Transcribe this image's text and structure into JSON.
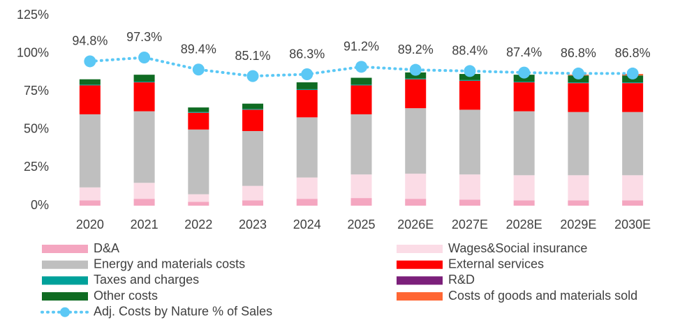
{
  "chart_data": {
    "type": "bar",
    "categories": [
      "2020",
      "2021",
      "2022",
      "2023",
      "2024",
      "2025",
      "2026E",
      "2027E",
      "2028E",
      "2029E",
      "2030E"
    ],
    "ylim": [
      0,
      125
    ],
    "yticks": [
      {
        "value": 0,
        "label": "0%"
      },
      {
        "value": 25,
        "label": "25%"
      },
      {
        "value": 50,
        "label": "50%"
      },
      {
        "value": 75,
        "label": "75%"
      },
      {
        "value": 100,
        "label": "100%"
      },
      {
        "value": 125,
        "label": "125%"
      }
    ],
    "grid": false,
    "series": [
      {
        "name": "D&A",
        "color": "#f4a6c0",
        "values": [
          3.5,
          4.5,
          2.5,
          3.5,
          4.5,
          5,
          4.5,
          4,
          3.5,
          3.5,
          3.5
        ]
      },
      {
        "name": "Wages&Social insurance",
        "color": "#fbdce6",
        "values": [
          8.5,
          10.5,
          5,
          9.5,
          14,
          15.5,
          16.5,
          16.5,
          16.5,
          16.5,
          16.5
        ]
      },
      {
        "name": "Energy and materials costs",
        "color": "#bfbfbf",
        "values": [
          48,
          47,
          42.5,
          36,
          39.5,
          39.5,
          43,
          42.5,
          42,
          41.5,
          41.5
        ]
      },
      {
        "name": "External services",
        "color": "#ff0000",
        "values": [
          19,
          19,
          11,
          14,
          18,
          19,
          19,
          19,
          19,
          19,
          19
        ]
      },
      {
        "name": "Taxes and charges",
        "color": "#00a19a",
        "values": [
          0.5,
          0.5,
          0.5,
          0.5,
          0.5,
          0.5,
          0.5,
          0.5,
          0.5,
          0.5,
          0.5
        ]
      },
      {
        "name": "R&D",
        "color": "#7b1f7a",
        "values": [
          0,
          0,
          0,
          0,
          0,
          0,
          0,
          0,
          0,
          0,
          0
        ]
      },
      {
        "name": "Other costs",
        "color": "#0f6b22",
        "values": [
          3.5,
          4.5,
          3,
          3.5,
          4.5,
          4.5,
          4,
          4,
          4.5,
          4.5,
          4.5
        ]
      },
      {
        "name": "Costs of goods and materials sold",
        "color": "#ff6633",
        "values": [
          0,
          0,
          0,
          0,
          0,
          0,
          0,
          0,
          0,
          0.5,
          1
        ]
      },
      {
        "name": "Adj. Costs by Nature % of Sales",
        "type": "line",
        "color": "#5bc8f5",
        "values": [
          94.8,
          97.3,
          89.4,
          85.1,
          86.3,
          91.2,
          89.2,
          88.4,
          87.4,
          86.8,
          86.8
        ],
        "value_labels": [
          "94.8%",
          "97.3%",
          "89.4%",
          "85.1%",
          "86.3%",
          "91.2%",
          "89.2%",
          "88.4%",
          "87.4%",
          "86.8%",
          "86.8%"
        ]
      }
    ]
  }
}
